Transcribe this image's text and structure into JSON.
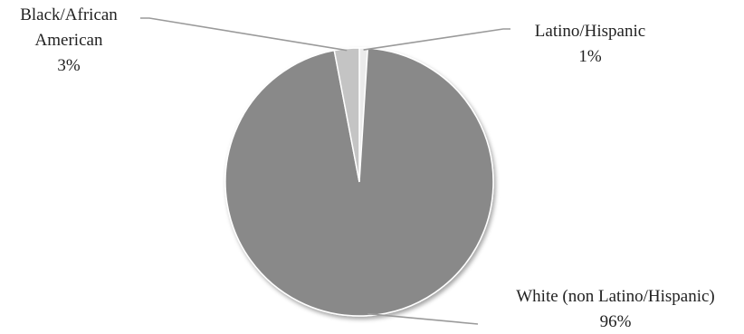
{
  "chart_data": {
    "type": "pie",
    "title": "",
    "slices": [
      {
        "label_lines": [
          "Latino/Hispanic"
        ],
        "value_text": "1%",
        "value": 1,
        "color": "#ebebeb"
      },
      {
        "label_lines": [
          "White (non Latino/Hispanic)"
        ],
        "value_text": "96%",
        "value": 96,
        "color": "#898989"
      },
      {
        "label_lines": [
          "Black/African",
          "American"
        ],
        "value_text": "3%",
        "value": 3,
        "color": "#c4c4c4"
      }
    ],
    "data_labels": "outside with leader lines",
    "legend": "none"
  }
}
